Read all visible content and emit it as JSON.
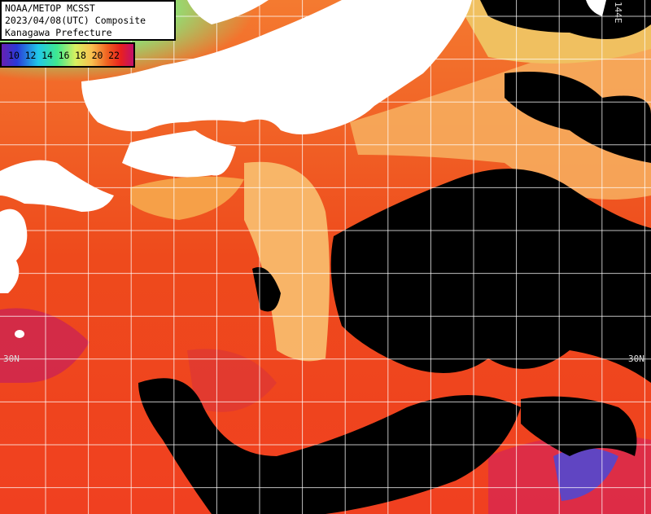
{
  "header": {
    "lines": [
      "NOAA/METOP MCSST",
      "2023/04/08(UTC) Composite",
      "Kanagawa Prefecture"
    ]
  },
  "colorbar": {
    "labels": [
      10,
      12,
      14,
      16,
      18,
      20,
      22
    ]
  },
  "grid_labels": {
    "latitude": "30N",
    "longitude": "144E"
  }
}
